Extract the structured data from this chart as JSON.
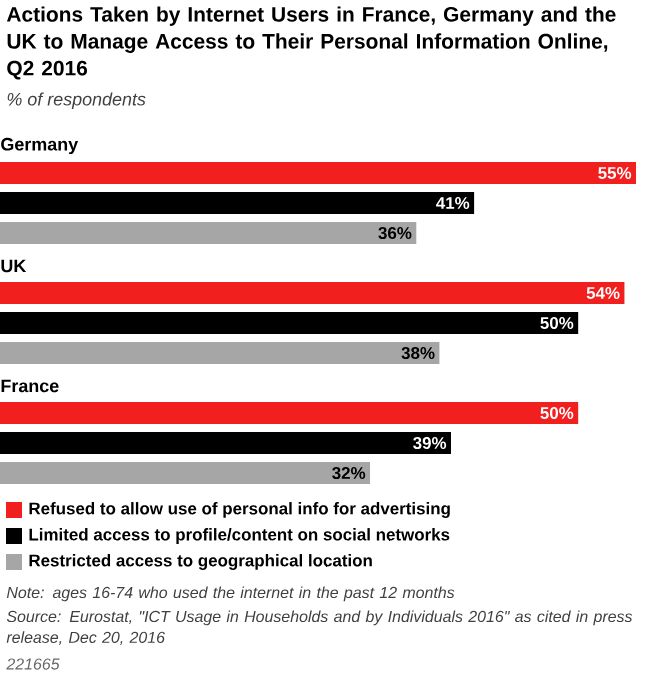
{
  "chart_data": {
    "type": "bar",
    "orientation": "horizontal",
    "title": "Actions Taken by Internet Users in France, Germany and the UK to Manage Access to Their Personal Information Online, Q2 2016",
    "subtitle": "% of respondents",
    "categories": [
      "Germany",
      "UK",
      "France"
    ],
    "series": [
      {
        "name": "Refused to allow use of personal info for advertising",
        "color": "#f21f1f",
        "values": [
          55,
          54,
          50
        ],
        "value_labels": [
          "55%",
          "54%",
          "50%"
        ]
      },
      {
        "name": "Limited access to profile/content on social networks",
        "color": "#000000",
        "values": [
          41,
          50,
          39
        ],
        "value_labels": [
          "41%",
          "50%",
          "39%"
        ]
      },
      {
        "name": "Restricted access to geographical location",
        "color": "#a6a6a6",
        "values": [
          36,
          38,
          32
        ],
        "value_labels": [
          "36%",
          "38%",
          "32%"
        ]
      }
    ],
    "legend": "bottom",
    "annotations": [
      "Note: ages 16-74 who used the internet in the past 12 months",
      "Source: Eurostat, \"ICT Usage in Households and by Individuals 2016\" as cited in press release, Dec 20, 2016",
      "221665"
    ]
  }
}
